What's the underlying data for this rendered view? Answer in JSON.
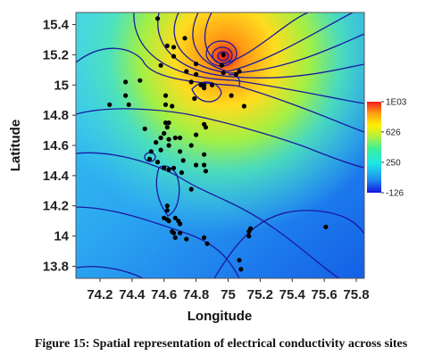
{
  "caption": "Figure 15: Spatial representation of electrical conductivity across sites",
  "chart_data": {
    "type": "heatmap",
    "title": "",
    "xlabel": "Longitude",
    "ylabel": "Latitude",
    "xlim": [
      74.05,
      75.85
    ],
    "ylim": [
      13.72,
      15.48
    ],
    "x_ticks": [
      74.2,
      74.4,
      74.6,
      74.8,
      75.0,
      75.2,
      75.4,
      75.6,
      75.8
    ],
    "x_tick_labels": [
      "74.2",
      "74.4",
      "74.6",
      "74.8",
      "75",
      "75.2",
      "75.4",
      "75.6",
      "75.8"
    ],
    "y_ticks": [
      13.8,
      14.0,
      14.2,
      14.4,
      14.6,
      14.8,
      15.0,
      15.2,
      15.4
    ],
    "y_tick_labels": [
      "13.8",
      "14",
      "14.2",
      "14.4",
      "14.6",
      "14.8",
      "15",
      "15.2",
      "15.4"
    ],
    "colorbar": {
      "min": -126,
      "max": 1000,
      "tick_values": [
        1000,
        626,
        250,
        -126
      ],
      "tick_labels": [
        "1E03",
        "626",
        "250",
        "-126"
      ],
      "colors": [
        "#1414e0",
        "#1e8cf0",
        "#1ee6e6",
        "#3cf09a",
        "#b4f03c",
        "#fff000",
        "#ffa014",
        "#f01e1e"
      ]
    },
    "contour_color": "#1a1aa0",
    "sites": [
      [
        74.36,
        14.93
      ],
      [
        74.36,
        15.02
      ],
      [
        74.45,
        15.03
      ],
      [
        74.56,
        15.44
      ],
      [
        74.58,
        15.13
      ],
      [
        74.62,
        15.26
      ],
      [
        74.66,
        15.25
      ],
      [
        74.73,
        15.31
      ],
      [
        74.74,
        15.09
      ],
      [
        74.77,
        15.02
      ],
      [
        74.8,
        15.14
      ],
      [
        74.8,
        15.07
      ],
      [
        74.83,
        15.0
      ],
      [
        74.85,
        15.0
      ],
      [
        74.85,
        14.98
      ],
      [
        74.9,
        15.0
      ],
      [
        74.96,
        15.13
      ],
      [
        74.97,
        15.08
      ],
      [
        75.05,
        15.07
      ],
      [
        74.97,
        15.2
      ],
      [
        75.02,
        14.93
      ],
      [
        75.1,
        14.86
      ],
      [
        74.66,
        15.19
      ],
      [
        74.61,
        14.93
      ],
      [
        74.61,
        14.87
      ],
      [
        74.65,
        14.86
      ],
      [
        74.79,
        14.91
      ],
      [
        74.61,
        14.75
      ],
      [
        74.63,
        14.75
      ],
      [
        74.62,
        14.72
      ],
      [
        74.6,
        14.68
      ],
      [
        74.63,
        14.64
      ],
      [
        74.58,
        14.65
      ],
      [
        74.55,
        14.62
      ],
      [
        74.63,
        14.6
      ],
      [
        74.67,
        14.65
      ],
      [
        74.7,
        14.65
      ],
      [
        74.58,
        14.57
      ],
      [
        74.7,
        14.56
      ],
      [
        74.72,
        14.5
      ],
      [
        74.77,
        14.6
      ],
      [
        74.8,
        14.67
      ],
      [
        74.56,
        14.49
      ],
      [
        74.6,
        14.45
      ],
      [
        74.63,
        14.44
      ],
      [
        74.66,
        14.45
      ],
      [
        74.51,
        14.51
      ],
      [
        74.48,
        14.71
      ],
      [
        74.52,
        14.56
      ],
      [
        74.38,
        14.87
      ],
      [
        74.26,
        14.87
      ],
      [
        74.85,
        14.54
      ],
      [
        74.85,
        14.47
      ],
      [
        74.86,
        14.43
      ],
      [
        74.77,
        14.31
      ],
      [
        74.71,
        14.42
      ],
      [
        74.8,
        14.47
      ],
      [
        74.85,
        14.74
      ],
      [
        74.86,
        14.72
      ],
      [
        74.62,
        14.2
      ],
      [
        74.62,
        14.17
      ],
      [
        74.6,
        14.12
      ],
      [
        74.62,
        14.11
      ],
      [
        74.63,
        14.1
      ],
      [
        74.67,
        14.12
      ],
      [
        74.69,
        14.1
      ],
      [
        74.7,
        14.08
      ],
      [
        74.65,
        14.03
      ],
      [
        74.66,
        14.02
      ],
      [
        74.67,
        13.99
      ],
      [
        74.7,
        14.02
      ],
      [
        74.74,
        13.98
      ],
      [
        74.85,
        13.99
      ],
      [
        74.87,
        13.95
      ],
      [
        75.13,
        14.03
      ],
      [
        75.14,
        14.05
      ],
      [
        75.13,
        14.0
      ],
      [
        75.07,
        13.84
      ],
      [
        75.08,
        13.78
      ],
      [
        75.61,
        14.06
      ],
      [
        75.07,
        15.09
      ]
    ]
  }
}
